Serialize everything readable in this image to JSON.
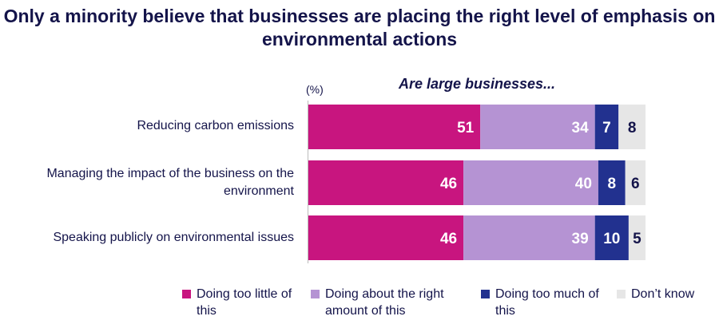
{
  "chart_data": {
    "type": "bar",
    "orientation": "horizontal",
    "stacked": true,
    "title": "Only a minority believe that businesses are placing the right level of emphasis on environmental actions",
    "subtitle": "Are large businesses...",
    "unit_label": "(%)",
    "categories": [
      "Reducing carbon emissions",
      "Managing the impact of the business on the environment",
      "Speaking publicly on environmental issues"
    ],
    "series": [
      {
        "name": "Doing too little of this",
        "values": [
          51,
          46,
          46
        ],
        "color": "#c8157f",
        "label_color": "#ffffff"
      },
      {
        "name": "Doing about the right amount of this",
        "values": [
          34,
          40,
          39
        ],
        "color": "#b593d3",
        "label_color": "#ffffff"
      },
      {
        "name": "Doing too much of this",
        "values": [
          7,
          8,
          10
        ],
        "color": "#22318f",
        "label_color": "#ffffff"
      },
      {
        "name": "Don’t know",
        "values": [
          8,
          6,
          5
        ],
        "color": "#e6e6e6",
        "label_color": "#14144a"
      }
    ],
    "xlim": [
      0,
      100
    ],
    "grid": false,
    "legend_position": "bottom"
  }
}
